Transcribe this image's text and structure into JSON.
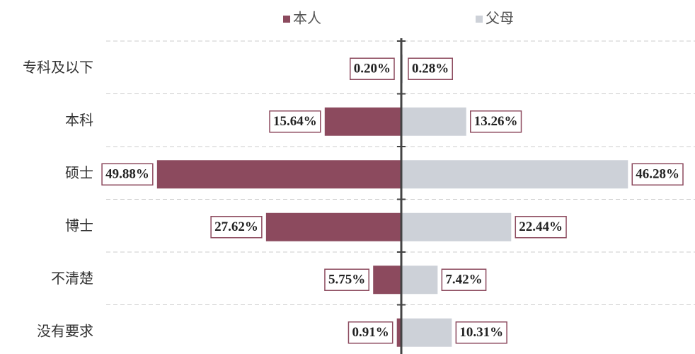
{
  "chart_data": {
    "type": "butterfly",
    "categories": [
      "专科及以下",
      "本科",
      "硕士",
      "博士",
      "不清楚",
      "没有要求"
    ],
    "series": [
      {
        "name": "本人",
        "color": "#8c4a5e",
        "values": [
          0.2,
          15.64,
          49.88,
          27.62,
          5.75,
          0.91
        ],
        "value_labels": [
          "0.20%",
          "15.64%",
          "49.88%",
          "27.62%",
          "5.75%",
          "0.91%"
        ]
      },
      {
        "name": "父母",
        "color": "#cdd1d8",
        "values": [
          0.28,
          13.26,
          46.28,
          22.44,
          7.42,
          10.31
        ],
        "value_labels": [
          "0.28%",
          "13.26%",
          "46.28%",
          "22.44%",
          "7.42%",
          "10.31%"
        ]
      }
    ],
    "label_border": "#8c4a5e"
  }
}
